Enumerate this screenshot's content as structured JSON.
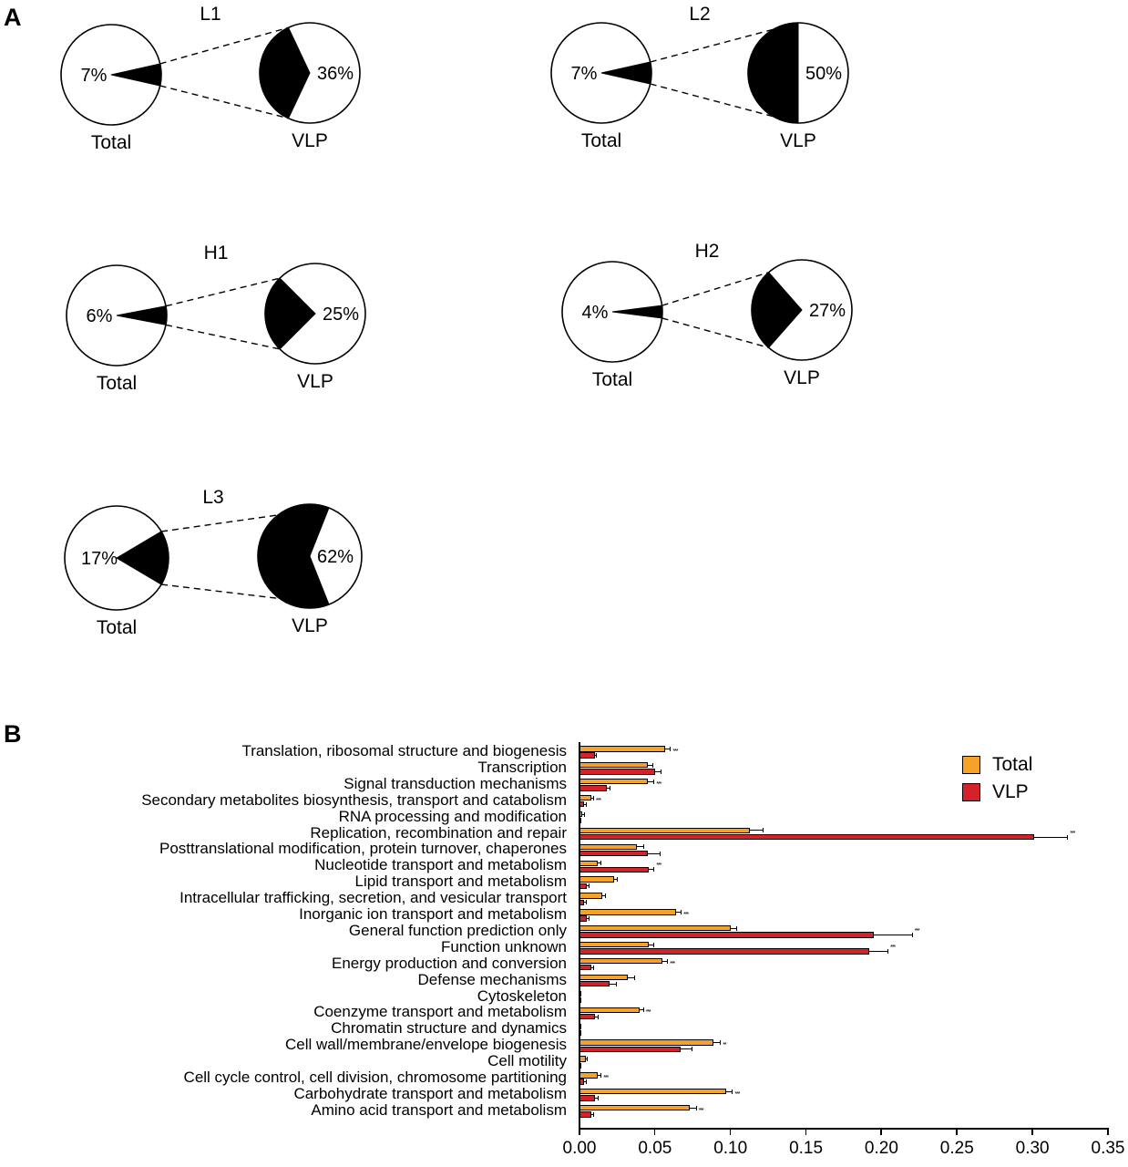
{
  "figure": {
    "panel_a_label": "A",
    "panel_b_label": "B"
  },
  "chart_data": [
    {
      "type": "pie",
      "title": "L1",
      "pies": [
        {
          "label": "Total",
          "value_pct": 7,
          "display": "7%"
        },
        {
          "label": "VLP",
          "value_pct": 36,
          "display": "36%"
        }
      ],
      "slice_color": "#000000"
    },
    {
      "type": "pie",
      "title": "L2",
      "pies": [
        {
          "label": "Total",
          "value_pct": 7,
          "display": "7%"
        },
        {
          "label": "VLP",
          "value_pct": 50,
          "display": "50%"
        }
      ],
      "slice_color": "#000000"
    },
    {
      "type": "pie",
      "title": "H1",
      "pies": [
        {
          "label": "Total",
          "value_pct": 6,
          "display": "6%"
        },
        {
          "label": "VLP",
          "value_pct": 25,
          "display": "25%"
        }
      ],
      "slice_color": "#000000"
    },
    {
      "type": "pie",
      "title": "H2",
      "pies": [
        {
          "label": "Total",
          "value_pct": 4,
          "display": "4%"
        },
        {
          "label": "VLP",
          "value_pct": 27,
          "display": "27%"
        }
      ],
      "slice_color": "#000000"
    },
    {
      "type": "pie",
      "title": "L3",
      "pies": [
        {
          "label": "Total",
          "value_pct": 17,
          "display": "17%"
        },
        {
          "label": "VLP",
          "value_pct": 62,
          "display": "62%"
        }
      ],
      "slice_color": "#000000"
    },
    {
      "type": "bar",
      "orientation": "horizontal",
      "categories": [
        "Translation, ribosomal structure and biogenesis",
        "Transcription",
        "Signal transduction mechanisms",
        "Secondary metabolites biosynthesis, transport and catabolism",
        "RNA processing and modification",
        "Replication, recombination and repair",
        "Posttranslational modification, protein turnover, chaperones",
        "Nucleotide transport and metabolism",
        "Lipid transport and metabolism",
        "Intracellular trafficking, secretion, and vesicular transport",
        "Inorganic ion transport and metabolism",
        "General function prediction only",
        "Function unknown",
        "Energy production and conversion",
        "Defense mechanisms",
        "Cytoskeleton",
        "Coenzyme transport and metabolism",
        "Chromatin structure and dynamics",
        "Cell wall/membrane/envelope biogenesis",
        "Cell motility",
        "Cell cycle control, cell division, chromosome partitioning",
        "Carbohydrate transport and metabolism",
        "Amino acid transport and metabolism"
      ],
      "series": [
        {
          "name": "Total",
          "color": "#F5A328",
          "values": [
            0.057,
            0.045,
            0.045,
            0.008,
            0.002,
            0.113,
            0.038,
            0.012,
            0.023,
            0.015,
            0.064,
            0.1,
            0.046,
            0.055,
            0.032,
            0.001,
            0.04,
            0.001,
            0.089,
            0.004,
            0.012,
            0.097,
            0.073
          ],
          "errors": [
            0.003,
            0.003,
            0.004,
            0.001,
            0.001,
            0.008,
            0.004,
            0.002,
            0.002,
            0.002,
            0.003,
            0.004,
            0.003,
            0.003,
            0.004,
            0,
            0.002,
            0,
            0.004,
            0.001,
            0.002,
            0.004,
            0.004
          ]
        },
        {
          "name": "VLP",
          "color": "#D3222A",
          "values": [
            0.01,
            0.05,
            0.018,
            0.003,
            0.001,
            0.301,
            0.045,
            0.046,
            0.005,
            0.003,
            0.005,
            0.195,
            0.192,
            0.008,
            0.02,
            0.001,
            0.01,
            0.001,
            0.067,
            0.001,
            0.003,
            0.01,
            0.008
          ],
          "errors": [
            0.001,
            0.004,
            0.002,
            0.001,
            0,
            0.022,
            0.008,
            0.003,
            0.001,
            0.001,
            0.001,
            0.025,
            0.012,
            0.001,
            0.004,
            0,
            0.002,
            0,
            0.007,
            0,
            0.001,
            0.002,
            0.001
          ]
        }
      ],
      "significance": [
        "***",
        "",
        "***",
        "***",
        "",
        "***",
        "",
        "***",
        "",
        "",
        "***",
        "***",
        "***",
        "***",
        "",
        "",
        "***",
        "",
        "**",
        "",
        "***",
        "***",
        "***"
      ],
      "xlim": [
        0,
        0.35
      ],
      "xticks": [
        "0.00",
        "0.05",
        "0.10",
        "0.15",
        "0.20",
        "0.25",
        "0.30",
        "0.35"
      ],
      "legend": {
        "position": "top-right",
        "entries": [
          "Total",
          "VLP"
        ]
      }
    }
  ]
}
